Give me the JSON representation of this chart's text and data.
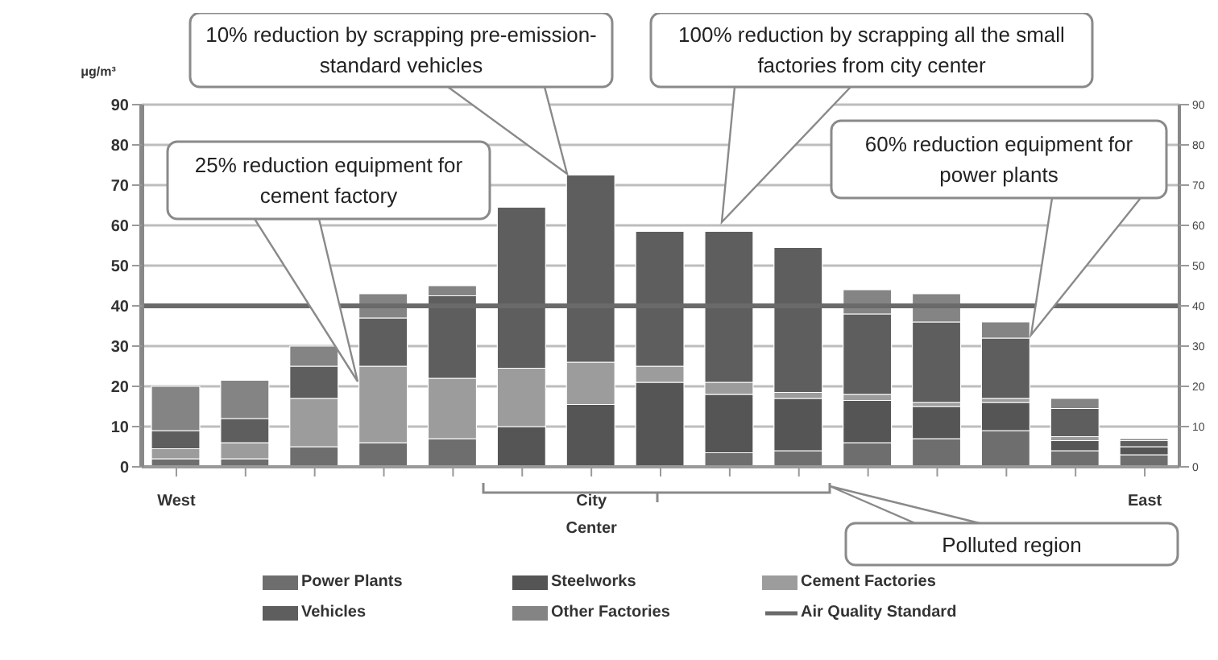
{
  "chart_data": {
    "type": "bar",
    "stacked": true,
    "ylabel": "μg/m³",
    "categories": [
      "West",
      null,
      null,
      null,
      null,
      null,
      "City Center",
      null,
      null,
      null,
      null,
      null,
      null,
      null,
      "East"
    ],
    "series": [
      {
        "name": "Power Plants",
        "color": "#6e6e6e",
        "values": [
          2,
          2,
          5,
          6,
          7,
          null,
          null,
          null,
          3.5,
          4,
          6,
          7,
          9,
          4,
          3
        ]
      },
      {
        "name": "Steelworks",
        "color": "#555555",
        "values": [
          0,
          0,
          0,
          0,
          0,
          10,
          15.5,
          21,
          14.5,
          13,
          10.5,
          8,
          7,
          2.5,
          2
        ]
      },
      {
        "name": "Cement Factories",
        "color": "#9c9c9c",
        "values": [
          2.5,
          4,
          12,
          19,
          15,
          14.5,
          10.5,
          4,
          3,
          1.5,
          1.5,
          1,
          1,
          1,
          0
        ]
      },
      {
        "name": "Vehicles",
        "color": "#5e5e5e",
        "values": [
          4.5,
          6,
          8,
          12,
          20.5,
          40,
          46.5,
          33.5,
          37.5,
          36,
          20,
          20,
          15,
          7,
          1.5
        ]
      },
      {
        "name": "Other Factories",
        "color": "#848484",
        "values": [
          11,
          9.5,
          5,
          6,
          2.5,
          0,
          0,
          0,
          0,
          0,
          6,
          7,
          4,
          2.5,
          0.5
        ]
      }
    ],
    "ylim": [
      0,
      90
    ],
    "yticks": [
      0,
      10,
      20,
      30,
      40,
      50,
      60,
      70,
      80,
      90
    ],
    "y2lim": [
      0,
      90
    ],
    "y2ticks": [
      0,
      10,
      20,
      30,
      40,
      50,
      60,
      70,
      80,
      90
    ],
    "grid": "y",
    "legend": "bottom",
    "ref_lines": [
      {
        "axis": "y",
        "value": 40,
        "label": "Air Quality Standard",
        "color": "#6a6a6a"
      }
    ],
    "annotations": [
      "25% reduction equipment for cement factory",
      "10% reduction by scrapping pre-emission-standard vehicles",
      "100% reduction by scrapping all the small factories from city center",
      "60% reduction equipment for power plants",
      "Polluted region"
    ]
  }
}
